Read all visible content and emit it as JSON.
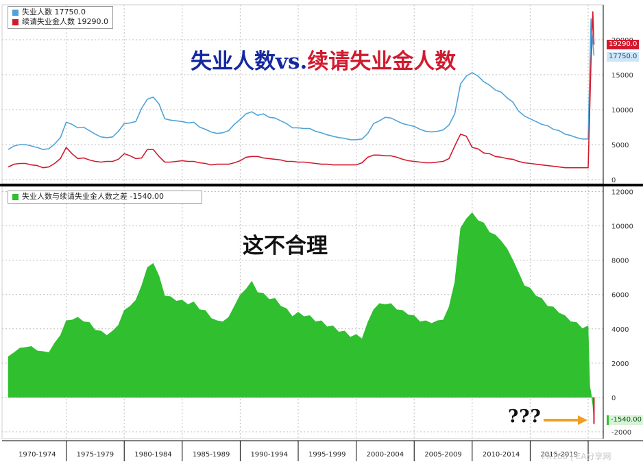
{
  "colors": {
    "unemployed": "#4fa3d8",
    "continuing_claims": "#d21a2e",
    "difference": "#2fbf2f",
    "headline_blue": "#1428a0",
    "headline_red": "#d21a2e",
    "arrow": "#f0a020"
  },
  "headline": {
    "part1": "失业人数vs.",
    "part2": "续请失业金人数"
  },
  "annotation": "这不合理",
  "question_marks": "???",
  "watermark": "FX168 | EA分享网",
  "top_legend": [
    {
      "label": "失业人数 17750.0",
      "color": "#4fa3d8"
    },
    {
      "label": "续请失业金人数 19290.0",
      "color": "#d21a2e"
    }
  ],
  "bottom_legend": [
    {
      "label": "失业人数与续请失业金人数之差  -1540.00",
      "color": "#2fbf2f"
    }
  ],
  "badges": {
    "top_red": "19290.0",
    "top_blue": "17750.0",
    "bottom_green": "-1540.00"
  },
  "top_y_ticks": [
    "0",
    "5000",
    "10000",
    "15000",
    "20000"
  ],
  "bottom_y_ticks": [
    "-2000",
    "0",
    "2000",
    "4000",
    "6000",
    "8000",
    "10000",
    "12000"
  ],
  "x_ticks": [
    "1970-1974",
    "1975-1979",
    "1980-1984",
    "1985-1989",
    "1990-1994",
    "1995-1999",
    "2000-2004",
    "2005-2009",
    "2010-2014",
    "2015-2019"
  ],
  "chart_data": [
    {
      "type": "line",
      "x": [
        1970,
        1970.5,
        1971,
        1971.5,
        1972,
        1972.5,
        1973,
        1973.5,
        1974,
        1974.5,
        1975,
        1975.5,
        1976,
        1976.5,
        1977,
        1977.5,
        1978,
        1978.5,
        1979,
        1979.5,
        1980,
        1980.5,
        1981,
        1981.5,
        1982,
        1982.5,
        1983,
        1983.5,
        1984,
        1984.5,
        1985,
        1985.5,
        1986,
        1986.5,
        1987,
        1987.5,
        1988,
        1988.5,
        1989,
        1989.5,
        1990,
        1990.5,
        1991,
        1991.5,
        1992,
        1992.5,
        1993,
        1993.5,
        1994,
        1994.5,
        1995,
        1995.5,
        1996,
        1996.5,
        1997,
        1997.5,
        1998,
        1998.5,
        1999,
        1999.5,
        2000,
        2000.5,
        2001,
        2001.5,
        2002,
        2002.5,
        2003,
        2003.5,
        2004,
        2004.5,
        2005,
        2005.5,
        2006,
        2006.5,
        2007,
        2007.5,
        2008,
        2008.5,
        2009,
        2009.5,
        2010,
        2010.5,
        2011,
        2011.5,
        2012,
        2012.5,
        2013,
        2013.5,
        2014,
        2014.5,
        2015,
        2015.5,
        2016,
        2016.5,
        2017,
        2017.5,
        2018,
        2018.5,
        2019,
        2019.5,
        2020,
        2020.25,
        2020.4,
        2020.5
      ],
      "series": [
        {
          "name": "失业人数",
          "values": [
            4300,
            4800,
            5000,
            5000,
            4800,
            4600,
            4300,
            4400,
            5100,
            6000,
            8200,
            7900,
            7400,
            7500,
            7000,
            6500,
            6100,
            6000,
            6100,
            6900,
            8000,
            8100,
            8300,
            10200,
            11500,
            11800,
            10800,
            8700,
            8500,
            8400,
            8300,
            8100,
            8200,
            7500,
            7200,
            6800,
            6600,
            6700,
            7000,
            7900,
            8600,
            9400,
            9700,
            9200,
            9400,
            8900,
            8800,
            8400,
            8000,
            7400,
            7400,
            7300,
            7300,
            6900,
            6700,
            6400,
            6200,
            6000,
            5900,
            5700,
            5700,
            5800,
            6600,
            8000,
            8400,
            8900,
            8800,
            8400,
            8000,
            7800,
            7600,
            7200,
            6900,
            6800,
            6900,
            7100,
            7800,
            9400,
            13700,
            14800,
            15300,
            14800,
            14000,
            13500,
            12800,
            12500,
            11700,
            11100,
            9800,
            9100,
            8700,
            8300,
            7900,
            7700,
            7200,
            7000,
            6500,
            6300,
            6000,
            5800,
            5800,
            23000,
            19500,
            17750
          ]
        },
        {
          "name": "续请失业金人数",
          "values": [
            1800,
            2200,
            2300,
            2300,
            2100,
            2000,
            1700,
            1800,
            2300,
            3000,
            4600,
            3700,
            3000,
            3100,
            2800,
            2600,
            2500,
            2600,
            2600,
            2900,
            3700,
            3400,
            3000,
            3100,
            4300,
            4300,
            3300,
            2500,
            2500,
            2600,
            2700,
            2600,
            2600,
            2400,
            2300,
            2100,
            2200,
            2200,
            2200,
            2400,
            2700,
            3200,
            3300,
            3300,
            3100,
            3000,
            2900,
            2800,
            2600,
            2600,
            2500,
            2500,
            2400,
            2300,
            2200,
            2200,
            2100,
            2100,
            2100,
            2100,
            2100,
            2400,
            3200,
            3500,
            3500,
            3400,
            3400,
            3200,
            2900,
            2700,
            2600,
            2500,
            2400,
            2400,
            2500,
            2600,
            3000,
            4800,
            6500,
            6200,
            4600,
            4400,
            3800,
            3700,
            3300,
            3200,
            3000,
            2900,
            2600,
            2400,
            2300,
            2200,
            2100,
            2000,
            1900,
            1800,
            1700,
            1700,
            1700,
            1700,
            1700,
            17000,
            24000,
            19290
          ]
        }
      ],
      "ylim": [
        0,
        25000
      ],
      "xlim": [
        1970,
        2021.3
      ],
      "grid": true,
      "legend": "top-left"
    },
    {
      "type": "area",
      "x": [
        1970,
        1970.5,
        1971,
        1971.5,
        1972,
        1972.5,
        1973,
        1973.5,
        1974,
        1974.5,
        1975,
        1975.5,
        1976,
        1976.5,
        1977,
        1977.5,
        1978,
        1978.5,
        1979,
        1979.5,
        1980,
        1980.5,
        1981,
        1981.5,
        1982,
        1982.5,
        1983,
        1983.5,
        1984,
        1984.5,
        1985,
        1985.5,
        1986,
        1986.5,
        1987,
        1987.5,
        1988,
        1988.5,
        1989,
        1989.5,
        1990,
        1990.5,
        1991,
        1991.5,
        1992,
        1992.5,
        1993,
        1993.5,
        1994,
        1994.5,
        1995,
        1995.5,
        1996,
        1996.5,
        1997,
        1997.5,
        1998,
        1998.5,
        1999,
        1999.5,
        2000,
        2000.5,
        2001,
        2001.5,
        2002,
        2002.5,
        2003,
        2003.5,
        2004,
        2004.5,
        2005,
        2005.5,
        2006,
        2006.5,
        2007,
        2007.5,
        2008,
        2008.5,
        2009,
        2009.5,
        2010,
        2010.5,
        2011,
        2011.5,
        2012,
        2012.5,
        2013,
        2013.5,
        2014,
        2014.5,
        2015,
        2015.5,
        2016,
        2016.5,
        2017,
        2017.5,
        2018,
        2018.5,
        2019,
        2019.5,
        2020,
        2020.15,
        2020.25,
        2020.4,
        2020.5
      ],
      "series": [
        {
          "name": "失业人数与续请失业金人数之差",
          "values": [
            2300,
            2700,
            2800,
            3000,
            2900,
            2800,
            2600,
            2700,
            3100,
            3700,
            4400,
            4600,
            4600,
            4500,
            4300,
            4000,
            3800,
            3700,
            3800,
            4300,
            5000,
            5400,
            5600,
            6600,
            7500,
            7900,
            7000,
            6000,
            5800,
            5700,
            5600,
            5500,
            5500,
            5200,
            5000,
            4700,
            4400,
            4500,
            4600,
            5400,
            5900,
            6400,
            6700,
            6200,
            6000,
            5800,
            5700,
            5400,
            5100,
            4800,
            4900,
            4800,
            4700,
            4500,
            4400,
            4200,
            4100,
            3900,
            3800,
            3600,
            3600,
            3500,
            4300,
            5200,
            5400,
            5500,
            5400,
            5200,
            5000,
            4900,
            4700,
            4500,
            4400,
            4400,
            4400,
            4600,
            5200,
            6800,
            9800,
            10500,
            10700,
            10400,
            10100,
            9700,
            9400,
            9200,
            8600,
            8100,
            7200,
            6600,
            6300,
            6000,
            5700,
            5400,
            5200,
            5000,
            4700,
            4500,
            4300,
            4100,
            4100,
            700,
            200,
            -400,
            -1540
          ]
        }
      ],
      "ylim": [
        -2400,
        12300
      ],
      "xlim": [
        1970,
        2021.3
      ],
      "grid": true,
      "legend": "top-left"
    }
  ]
}
